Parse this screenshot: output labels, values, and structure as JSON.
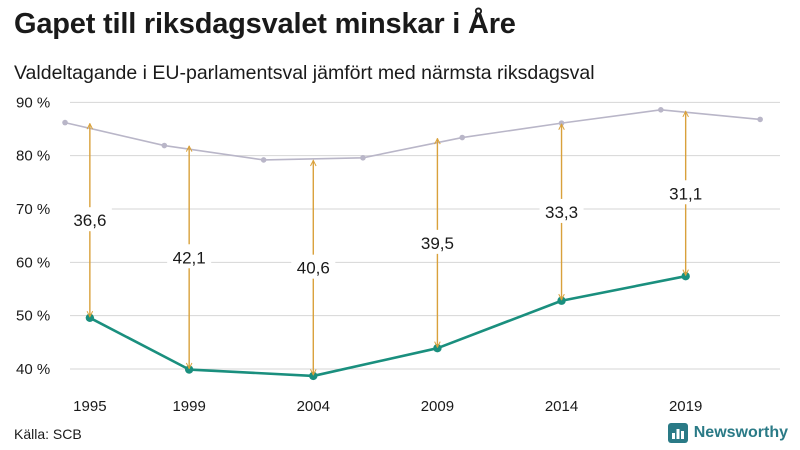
{
  "title": "Gapet till riksdagsvalet minskar i Åre",
  "subtitle": "Valdeltagande i EU-parlamentsval jämfört med närmsta riksdagsval",
  "source": "Källa: SCB",
  "brand": {
    "name": "Newsworthy",
    "logo_icon": "bar-chart-icon",
    "color": "#2a7a86"
  },
  "chart_data": {
    "type": "line",
    "title": "Gapet till riksdagsvalet minskar i Åre",
    "subtitle": "Valdeltagande i EU-parlamentsval jämfört med närmsta riksdagsval",
    "xlim": [
      1994.2,
      2022.8
    ],
    "ylim": [
      37,
      91
    ],
    "x_ticks": [
      1995,
      1999,
      2004,
      2009,
      2014,
      2019
    ],
    "x_tick_labels": [
      "1995",
      "1999",
      "2004",
      "2009",
      "2014",
      "2019"
    ],
    "y_ticks": [
      40,
      50,
      60,
      70,
      80,
      90
    ],
    "y_tick_labels": [
      "40 %",
      "50 %",
      "60 %",
      "70 %",
      "80 %",
      "90 %"
    ],
    "grid": true,
    "series": [
      {
        "role": "riksdagsval",
        "color": "#b9b6c8",
        "points": [
          {
            "x": 1994,
            "y": 86.2
          },
          {
            "x": 1998,
            "y": 81.9
          },
          {
            "x": 2002,
            "y": 79.2
          },
          {
            "x": 2006,
            "y": 79.6
          },
          {
            "x": 2010,
            "y": 83.4
          },
          {
            "x": 2014,
            "y": 86.1
          },
          {
            "x": 2018,
            "y": 88.6
          },
          {
            "x": 2022,
            "y": 86.8
          }
        ]
      },
      {
        "role": "eu-parlamentsval",
        "color": "#1a8f7e",
        "points": [
          {
            "x": 1995,
            "y": 49.6
          },
          {
            "x": 1999,
            "y": 39.9
          },
          {
            "x": 2004,
            "y": 38.7
          },
          {
            "x": 2009,
            "y": 43.9
          },
          {
            "x": 2014,
            "y": 52.8
          },
          {
            "x": 2019,
            "y": 57.4
          }
        ]
      }
    ],
    "gaps": [
      {
        "x": 1995,
        "from": 49.6,
        "to": 86.2,
        "label": "36,6"
      },
      {
        "x": 1999,
        "from": 39.9,
        "to": 82.0,
        "label": "42,1"
      },
      {
        "x": 2004,
        "from": 38.7,
        "to": 79.3,
        "label": "40,6"
      },
      {
        "x": 2009,
        "from": 43.9,
        "to": 83.4,
        "label": "39,5"
      },
      {
        "x": 2014,
        "from": 52.8,
        "to": 86.1,
        "label": "33,3"
      },
      {
        "x": 2019,
        "from": 57.4,
        "to": 88.5,
        "label": "31,1"
      }
    ],
    "gap_arrow_color": "#d9a13b"
  }
}
